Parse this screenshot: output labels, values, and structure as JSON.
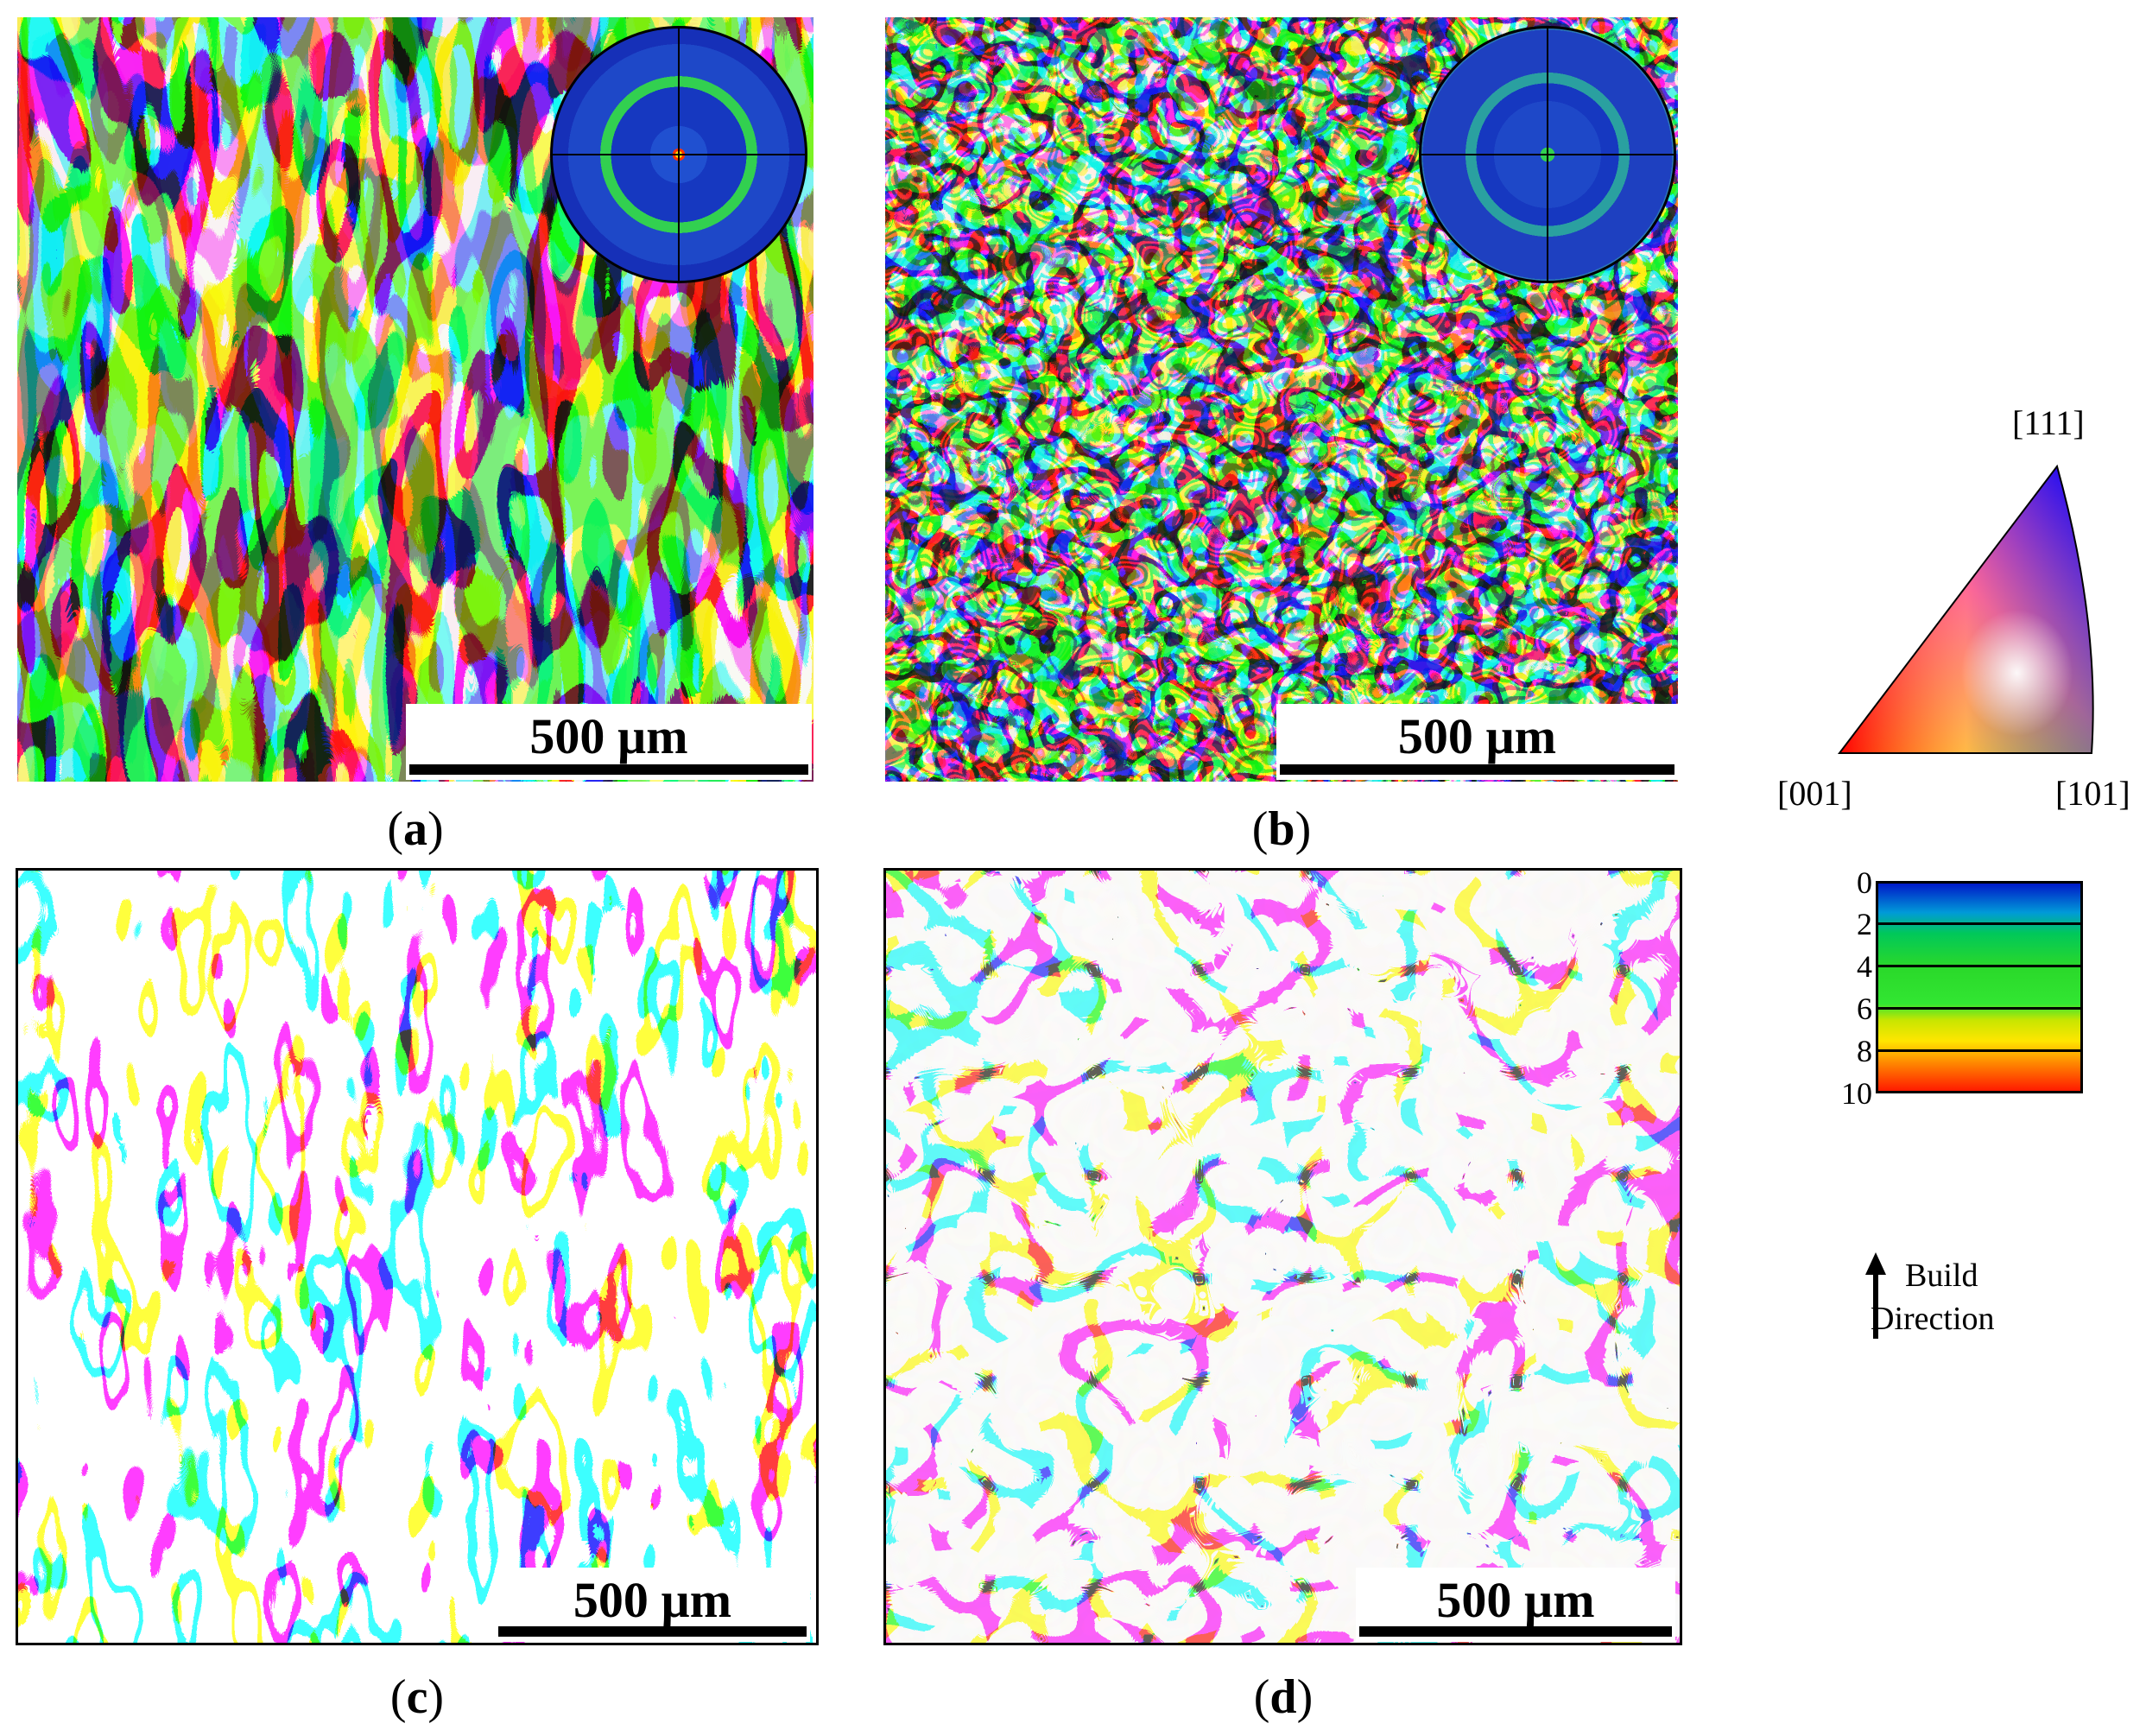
{
  "panels": {
    "a": {
      "caption_open": "(",
      "caption_letter": "a",
      "caption_close": ")",
      "scale_text": "500 µm"
    },
    "b": {
      "caption_open": "(",
      "caption_letter": "b",
      "caption_close": ")",
      "scale_text": "500 µm"
    },
    "c": {
      "caption_open": "(",
      "caption_letter": "c",
      "caption_close": ")",
      "scale_text": "500 µm"
    },
    "d": {
      "caption_open": "(",
      "caption_letter": "d",
      "caption_close": ")",
      "scale_text": "500 µm"
    }
  },
  "ipf_key": {
    "top": "[111]",
    "left": "[001]",
    "right": "[101]"
  },
  "colorbar": {
    "ticks": [
      "0",
      "2",
      "4",
      "6",
      "8",
      "10"
    ],
    "colors": [
      "#0018c8",
      "#009ad8",
      "#00c85a",
      "#32e632",
      "#c8e600",
      "#ffe600",
      "#ff8c00",
      "#ff1a00"
    ]
  },
  "build_direction": {
    "line1": "Build",
    "line2": "Direction"
  }
}
